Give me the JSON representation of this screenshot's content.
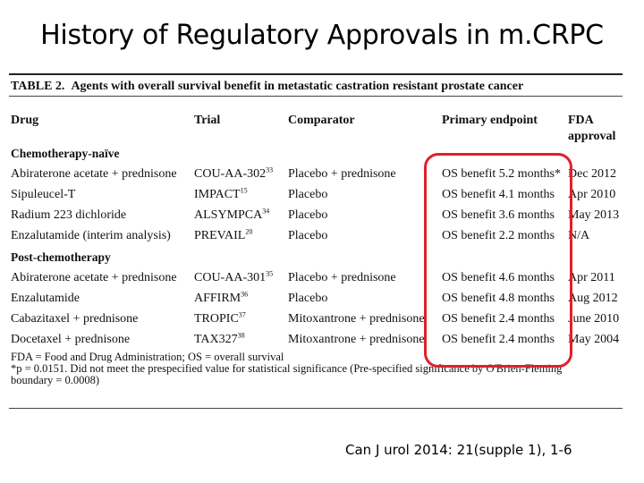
{
  "title": "History of Regulatory Approvals in m.CRPC",
  "table": {
    "caption_label": "TABLE 2.",
    "caption_text": "Agents with overall survival benefit in metastatic castration resistant prostate cancer",
    "headers": {
      "drug": "Drug",
      "trial": "Trial",
      "comparator": "Comparator",
      "endpoint": "Primary endpoint",
      "fda_line1": "FDA",
      "fda_line2": "approval"
    },
    "sections": [
      {
        "label": "Chemotherapy-naïve",
        "rows": [
          {
            "drug": "Abiraterone acetate + prednisone",
            "trial": "COU-AA-302",
            "ref": "33",
            "comparator": "Placebo + prednisone",
            "endpoint": "OS benefit 5.2 months*",
            "fda": "Dec 2012"
          },
          {
            "drug": "Sipuleucel-T",
            "trial": "IMPACT",
            "ref": "15",
            "comparator": "Placebo",
            "endpoint": "OS benefit 4.1 months",
            "fda": "Apr 2010"
          },
          {
            "drug": "Radium 223 dichloride",
            "trial": "ALSYMPCA",
            "ref": "34",
            "comparator": "Placebo",
            "endpoint": "OS benefit 3.6 months",
            "fda": "May 2013"
          },
          {
            "drug": "Enzalutamide (interim analysis)",
            "trial": "PREVAIL",
            "ref": "20",
            "comparator": "Placebo",
            "endpoint": "OS benefit 2.2 months",
            "fda": "N/A"
          }
        ]
      },
      {
        "label": "Post-chemotherapy",
        "rows": [
          {
            "drug": "Abiraterone acetate + prednisone",
            "trial": "COU-AA-301",
            "ref": "35",
            "comparator": "Placebo + prednisone",
            "endpoint": "OS benefit 4.6 months",
            "fda": "Apr 2011"
          },
          {
            "drug": "Enzalutamide",
            "trial": "AFFIRM",
            "ref": "36",
            "comparator": "Placebo",
            "endpoint": "OS benefit 4.8 months",
            "fda": "Aug 2012"
          },
          {
            "drug": "Cabazitaxel + prednisone",
            "trial": "TROPIC",
            "ref": "37",
            "comparator": "Mitoxantrone + prednisone",
            "endpoint": "OS benefit 2.4 months",
            "fda": "June 2010"
          },
          {
            "drug": "Docetaxel + prednisone",
            "trial": "TAX327",
            "ref": "38",
            "comparator": "Mitoxantrone + prednisone",
            "endpoint": "OS benefit 2.4 months",
            "fda": "May 2004"
          }
        ]
      }
    ],
    "footnotes": [
      "FDA = Food and Drug Administration; OS = overall survival",
      "*p = 0.0151. Did not meet the prespecified value for statistical significance (Pre-specified significance by O'Brien-Fleming",
      "boundary = 0.0008)"
    ]
  },
  "citation": "Can J urol 2014: 21(supple 1), 1-6",
  "colors": {
    "highlight": "#e0202a"
  }
}
